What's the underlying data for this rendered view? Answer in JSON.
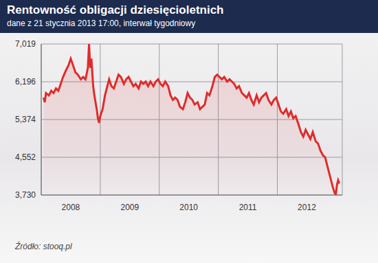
{
  "chart_data": {
    "type": "line",
    "title": "Rentowność obligacji dziesięcioletnich",
    "subtitle": "dane z 21 stycznia 2013 17:00, interwał tygodniowy",
    "source": "Źródło: stooq.pl",
    "color": "#e02b2b",
    "grid": true,
    "xlim": [
      2008,
      2013.1
    ],
    "xticks": [
      2008,
      2009,
      2010,
      2011,
      2012
    ],
    "ylim": [
      3.73,
      7.019
    ],
    "yticks": [
      {
        "value": 3.73,
        "label": "3,730"
      },
      {
        "value": 4.552,
        "label": "4,552"
      },
      {
        "value": 5.374,
        "label": "5,374"
      },
      {
        "value": 6.196,
        "label": "6,196"
      },
      {
        "value": 7.019,
        "label": "7,019"
      }
    ],
    "x": [
      2008.04,
      2008.06,
      2008.08,
      2008.13,
      2008.17,
      2008.21,
      2008.25,
      2008.29,
      2008.33,
      2008.37,
      2008.42,
      2008.46,
      2008.5,
      2008.54,
      2008.58,
      2008.62,
      2008.67,
      2008.71,
      2008.75,
      2008.79,
      2008.81,
      2008.83,
      2008.85,
      2008.88,
      2008.9,
      2008.94,
      2008.96,
      2008.98,
      2009.0,
      2009.04,
      2009.08,
      2009.12,
      2009.15,
      2009.19,
      2009.23,
      2009.27,
      2009.31,
      2009.35,
      2009.4,
      2009.44,
      2009.48,
      2009.52,
      2009.56,
      2009.6,
      2009.65,
      2009.69,
      2009.73,
      2009.77,
      2009.81,
      2009.85,
      2009.9,
      2009.94,
      2009.98,
      2010.02,
      2010.06,
      2010.1,
      2010.15,
      2010.19,
      2010.23,
      2010.27,
      2010.31,
      2010.35,
      2010.4,
      2010.44,
      2010.48,
      2010.52,
      2010.56,
      2010.6,
      2010.65,
      2010.69,
      2010.73,
      2010.77,
      2010.81,
      2010.85,
      2010.9,
      2010.94,
      2010.98,
      2011.02,
      2011.06,
      2011.1,
      2011.15,
      2011.19,
      2011.23,
      2011.27,
      2011.31,
      2011.35,
      2011.4,
      2011.44,
      2011.48,
      2011.52,
      2011.56,
      2011.6,
      2011.65,
      2011.69,
      2011.73,
      2011.77,
      2011.81,
      2011.85,
      2011.9,
      2011.94,
      2011.98,
      2012.02,
      2012.06,
      2012.1,
      2012.15,
      2012.19,
      2012.23,
      2012.27,
      2012.31,
      2012.35,
      2012.4,
      2012.44,
      2012.48,
      2012.52,
      2012.56,
      2012.6,
      2012.65,
      2012.69,
      2012.73,
      2012.77,
      2012.81,
      2012.85,
      2012.9,
      2012.94,
      2012.97,
      2012.99,
      2013.01,
      2013.03,
      2013.05
    ],
    "values": [
      5.85,
      5.75,
      5.95,
      5.9,
      6.0,
      5.95,
      6.05,
      6.0,
      6.15,
      6.3,
      6.45,
      6.55,
      6.7,
      6.55,
      6.4,
      6.35,
      6.25,
      6.3,
      6.25,
      6.5,
      7.019,
      6.5,
      6.7,
      6.1,
      5.9,
      5.6,
      5.4,
      5.3,
      5.45,
      5.6,
      5.9,
      6.1,
      6.25,
      6.1,
      6.05,
      6.2,
      6.35,
      6.3,
      6.15,
      6.25,
      6.3,
      6.2,
      6.1,
      6.15,
      6.05,
      6.2,
      6.15,
      6.2,
      6.1,
      6.2,
      6.1,
      6.2,
      6.25,
      6.15,
      6.1,
      6.2,
      6.1,
      5.9,
      5.8,
      5.85,
      5.8,
      5.65,
      5.6,
      5.75,
      5.95,
      5.85,
      5.8,
      5.7,
      5.75,
      5.6,
      5.65,
      5.7,
      5.95,
      5.9,
      6.1,
      6.3,
      6.35,
      6.3,
      6.25,
      6.3,
      6.2,
      6.25,
      6.2,
      6.15,
      6.05,
      6.1,
      5.95,
      5.9,
      5.85,
      5.95,
      5.8,
      5.7,
      5.9,
      5.75,
      5.85,
      5.9,
      5.95,
      5.8,
      5.7,
      5.8,
      5.85,
      5.7,
      5.55,
      5.5,
      5.6,
      5.45,
      5.55,
      5.4,
      5.45,
      5.3,
      5.1,
      5.0,
      5.15,
      5.05,
      4.95,
      5.1,
      4.9,
      4.85,
      4.7,
      4.6,
      4.55,
      4.35,
      4.1,
      3.9,
      3.78,
      3.73,
      3.95,
      4.05,
      3.98
    ]
  }
}
